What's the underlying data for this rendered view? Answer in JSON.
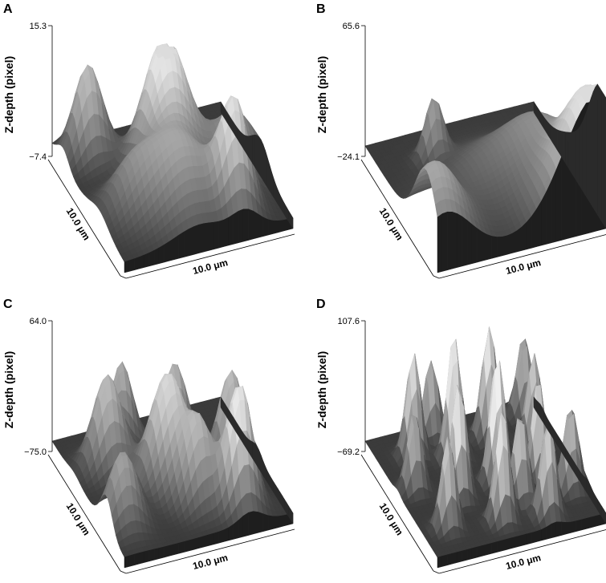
{
  "chart_data": [
    {
      "type": "surface3d",
      "panel_label": "A",
      "zlabel": "Z-depth (pixel)",
      "zlim": [
        -7.4,
        15.3
      ],
      "zmax_label": "15.3",
      "zmin_label": "−7.4",
      "xlabel": "10.0 μm",
      "ylabel": "10.0 μm",
      "peaks": [
        [
          0.5,
          0.4,
          1.0,
          0.12
        ],
        [
          0.15,
          0.15,
          0.7,
          0.08
        ],
        [
          0.72,
          0.85,
          0.8,
          0.08
        ],
        [
          0.45,
          0.75,
          0.55,
          0.15
        ],
        [
          0.85,
          0.55,
          0.45,
          0.12
        ],
        [
          0.2,
          0.65,
          0.35,
          0.12
        ]
      ]
    },
    {
      "type": "surface3d",
      "panel_label": "B",
      "zlabel": "Z-depth (pixel)",
      "zlim": [
        -24.1,
        65.6
      ],
      "zmax_label": "65.6",
      "zmin_label": "−24.1",
      "xlabel": "10.0 μm",
      "ylabel": "10.0 μm",
      "peaks": [
        [
          0.95,
          0.95,
          1.0,
          0.2
        ],
        [
          0.05,
          0.85,
          0.6,
          0.15
        ],
        [
          0.3,
          0.25,
          0.45,
          0.05
        ],
        [
          0.5,
          0.55,
          0.25,
          0.2
        ],
        [
          0.8,
          0.5,
          0.3,
          0.15
        ]
      ]
    },
    {
      "type": "surface3d",
      "panel_label": "C",
      "zlabel": "Z-depth (pixel)",
      "zlim": [
        -75.0,
        64.0
      ],
      "zmax_label": "64.0",
      "zmin_label": "−75.0",
      "xlabel": "10.0 μm",
      "ylabel": "10.0 μm",
      "peaks": [
        [
          0.45,
          0.55,
          0.85,
          0.1
        ],
        [
          0.75,
          0.85,
          0.95,
          0.07
        ],
        [
          0.2,
          0.3,
          0.7,
          0.08
        ],
        [
          0.35,
          0.15,
          0.6,
          0.06
        ],
        [
          0.6,
          0.3,
          0.65,
          0.07
        ],
        [
          0.85,
          0.5,
          0.7,
          0.07
        ],
        [
          0.1,
          0.75,
          0.55,
          0.08
        ],
        [
          0.55,
          0.75,
          0.6,
          0.08
        ]
      ]
    },
    {
      "type": "surface3d",
      "panel_label": "D",
      "zlabel": "Z-depth (pixel)",
      "zlim": [
        -69.2,
        107.6
      ],
      "zmax_label": "107.6",
      "zmin_label": "−69.2",
      "xlabel": "10.0 μm",
      "ylabel": "10.0 μm",
      "peaks": [
        [
          0.2,
          0.2,
          0.8,
          0.04
        ],
        [
          0.4,
          0.3,
          0.95,
          0.04
        ],
        [
          0.65,
          0.2,
          0.85,
          0.04
        ],
        [
          0.85,
          0.35,
          0.7,
          0.04
        ],
        [
          0.3,
          0.6,
          0.9,
          0.04
        ],
        [
          0.55,
          0.55,
          1.0,
          0.04
        ],
        [
          0.75,
          0.65,
          0.8,
          0.04
        ],
        [
          0.15,
          0.8,
          0.7,
          0.04
        ],
        [
          0.45,
          0.85,
          0.85,
          0.04
        ],
        [
          0.7,
          0.9,
          0.75,
          0.04
        ],
        [
          0.9,
          0.75,
          0.65,
          0.04
        ],
        [
          0.1,
          0.45,
          0.6,
          0.04
        ],
        [
          0.6,
          0.75,
          0.7,
          0.04
        ],
        [
          0.35,
          0.1,
          0.6,
          0.04
        ],
        [
          0.9,
          0.1,
          0.6,
          0.04
        ]
      ]
    }
  ]
}
